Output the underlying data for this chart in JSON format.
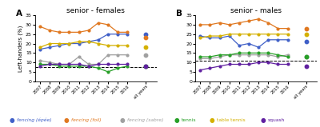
{
  "years": [
    2007,
    2008,
    2009,
    2010,
    2011,
    2012,
    2013,
    2014,
    2015,
    2016
  ],
  "females": {
    "epee": [
      17,
      18,
      19,
      20,
      20,
      21,
      22,
      25,
      25,
      25
    ],
    "foil": [
      29,
      27,
      26,
      26,
      26,
      27,
      31,
      30,
      26,
      26
    ],
    "sabre": [
      11,
      10,
      9,
      9,
      13,
      9,
      9,
      14,
      14,
      14
    ],
    "tennis": [
      9,
      9,
      8,
      8,
      8,
      8,
      7,
      5,
      7,
      8
    ],
    "table_tennis": [
      18,
      20,
      20,
      20,
      21,
      21,
      20,
      19,
      19,
      19
    ],
    "squash": [
      8,
      9,
      9,
      9,
      9,
      8,
      9,
      9,
      9,
      9
    ],
    "epee_all": 25,
    "foil_all": 23,
    "sabre_all": 14,
    "tennis_all": 8,
    "table_tennis_all": 18,
    "squash_all": 8
  },
  "males": {
    "epee": [
      24,
      23,
      23,
      24,
      19,
      20,
      18,
      22,
      22,
      22
    ],
    "foil": [
      30,
      30,
      31,
      30,
      31,
      32,
      33,
      31,
      28,
      28
    ],
    "sabre": [
      12,
      12,
      13,
      14,
      14,
      14,
      14,
      14,
      13,
      14
    ],
    "tennis": [
      13,
      13,
      14,
      14,
      15,
      15,
      15,
      15,
      14,
      13
    ],
    "table_tennis": [
      23,
      24,
      24,
      25,
      25,
      25,
      25,
      25,
      25,
      25
    ],
    "squash": [
      6,
      7,
      8,
      9,
      9,
      9,
      10,
      10,
      9,
      9
    ],
    "epee_all": 21,
    "foil_all": 28,
    "sabre_all": 13,
    "tennis_all": 13,
    "table_tennis_all": 25,
    "squash_all": 8
  },
  "colors": {
    "epee": "#4060c8",
    "foil": "#e07820",
    "sabre": "#a0a0a0",
    "tennis": "#28a028",
    "table_tennis": "#d4b000",
    "squash": "#6020a0"
  },
  "dashed_line_female": 7.5,
  "dashed_line_male": 11.0,
  "ylim": [
    0,
    35
  ],
  "yticks": [
    0,
    5,
    10,
    15,
    20,
    25,
    30,
    35
  ],
  "title_female": "senior - females",
  "title_male": "senior - males",
  "ylabel": "Left-handers (%)",
  "panel_A": "A",
  "panel_B": "B",
  "bg_color": "#ffffff",
  "legend": [
    {
      "label": "fencing (épée)",
      "color": "#4060c8"
    },
    {
      "label": "fencing (foil)",
      "color": "#e07820"
    },
    {
      "label": "fencing (sabre)",
      "color": "#a0a0a0"
    },
    {
      "label": "tennis",
      "color": "#28a028"
    },
    {
      "label": "table tennis",
      "color": "#d4b000"
    },
    {
      "label": "squash",
      "color": "#6020a0"
    }
  ]
}
